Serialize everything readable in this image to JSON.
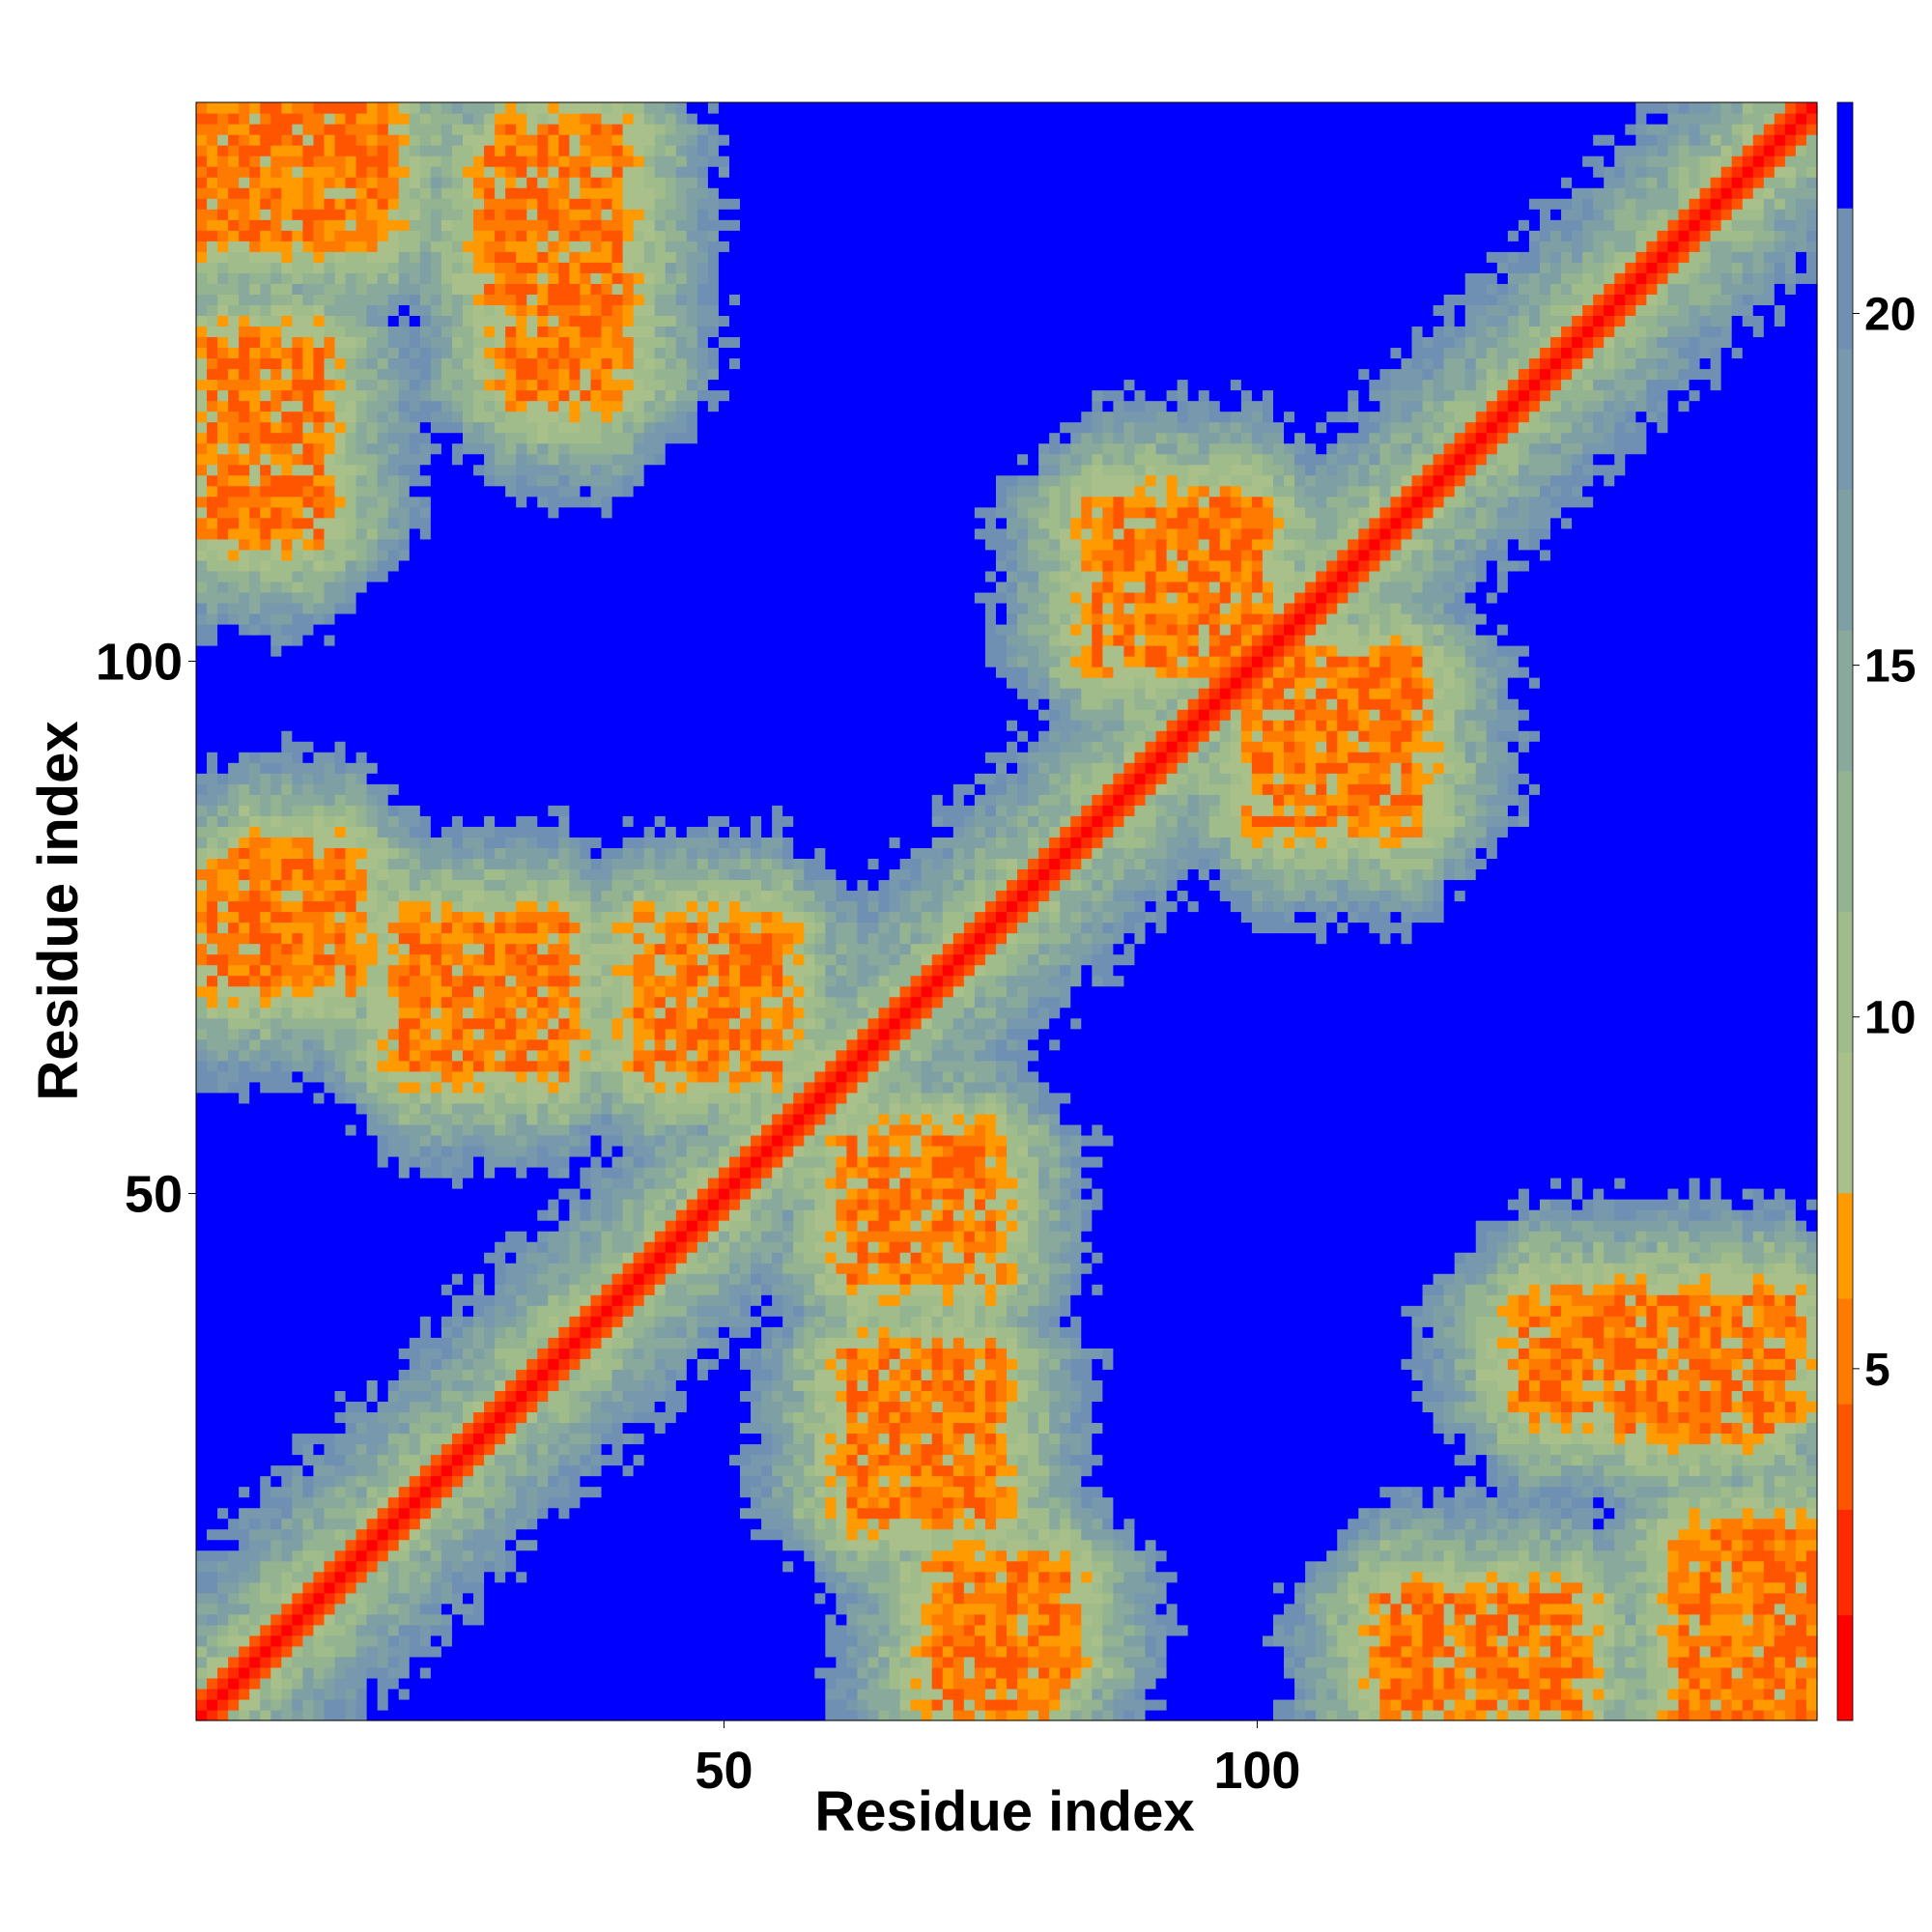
{
  "chart_data": {
    "type": "heatmap",
    "xlabel": "Residue index",
    "ylabel": "Residue index",
    "n": 152,
    "xlim": [
      1,
      152
    ],
    "ylim": [
      1,
      152
    ],
    "x_ticks": [
      50,
      100
    ],
    "y_ticks": [
      50,
      100
    ],
    "colorbar": {
      "range": [
        0,
        23
      ],
      "ticks": [
        5,
        10,
        15,
        20
      ],
      "levels": [
        {
          "from": 0,
          "to": 1.5,
          "color": "#ff0000"
        },
        {
          "from": 1.5,
          "to": 3,
          "color": "#ff2a00"
        },
        {
          "from": 3,
          "to": 4.5,
          "color": "#ff5500"
        },
        {
          "from": 4.5,
          "to": 6,
          "color": "#ff7a00"
        },
        {
          "from": 6,
          "to": 7.5,
          "color": "#ff9a00"
        },
        {
          "from": 7.5,
          "to": 9.5,
          "color": "#a9c08a"
        },
        {
          "from": 9.5,
          "to": 11.5,
          "color": "#9fbc8a"
        },
        {
          "from": 11.5,
          "to": 13.5,
          "color": "#93b391"
        },
        {
          "from": 13.5,
          "to": 15.5,
          "color": "#88a99b"
        },
        {
          "from": 15.5,
          "to": 17.5,
          "color": "#7ea0a5"
        },
        {
          "from": 17.5,
          "to": 19.5,
          "color": "#7798ad"
        },
        {
          "from": 19.5,
          "to": 21.5,
          "color": "#6f90b3"
        },
        {
          "from": 21.5,
          "to": 23,
          "color": "#0000ff"
        }
      ]
    },
    "contact_clusters": [
      {
        "residues": [
          1,
          18
        ],
        "partner": [
          140,
          152
        ]
      },
      {
        "residues": [
          20,
          35
        ],
        "partner": [
          62,
          75
        ]
      },
      {
        "residues": [
          42,
          55
        ],
        "partner": [
          62,
          75
        ]
      },
      {
        "residues": [
          70,
          80
        ],
        "partner": [
          2,
          10
        ]
      },
      {
        "residues": [
          100,
          115
        ],
        "partner": [
          85,
          100
        ]
      },
      {
        "residues": [
          112,
          130
        ],
        "partner": [
          2,
          12
        ]
      },
      {
        "residues": [
          135,
          148
        ],
        "partner": [
          28,
          38
        ]
      },
      {
        "residues": [
          5,
          15
        ],
        "partner": [
          70,
          82
        ]
      },
      {
        "residues": [
          30,
          40
        ],
        "partner": [
          125,
          150
        ]
      }
    ],
    "background_color": "#0000ff",
    "diagonal_color": "#ff0000"
  }
}
